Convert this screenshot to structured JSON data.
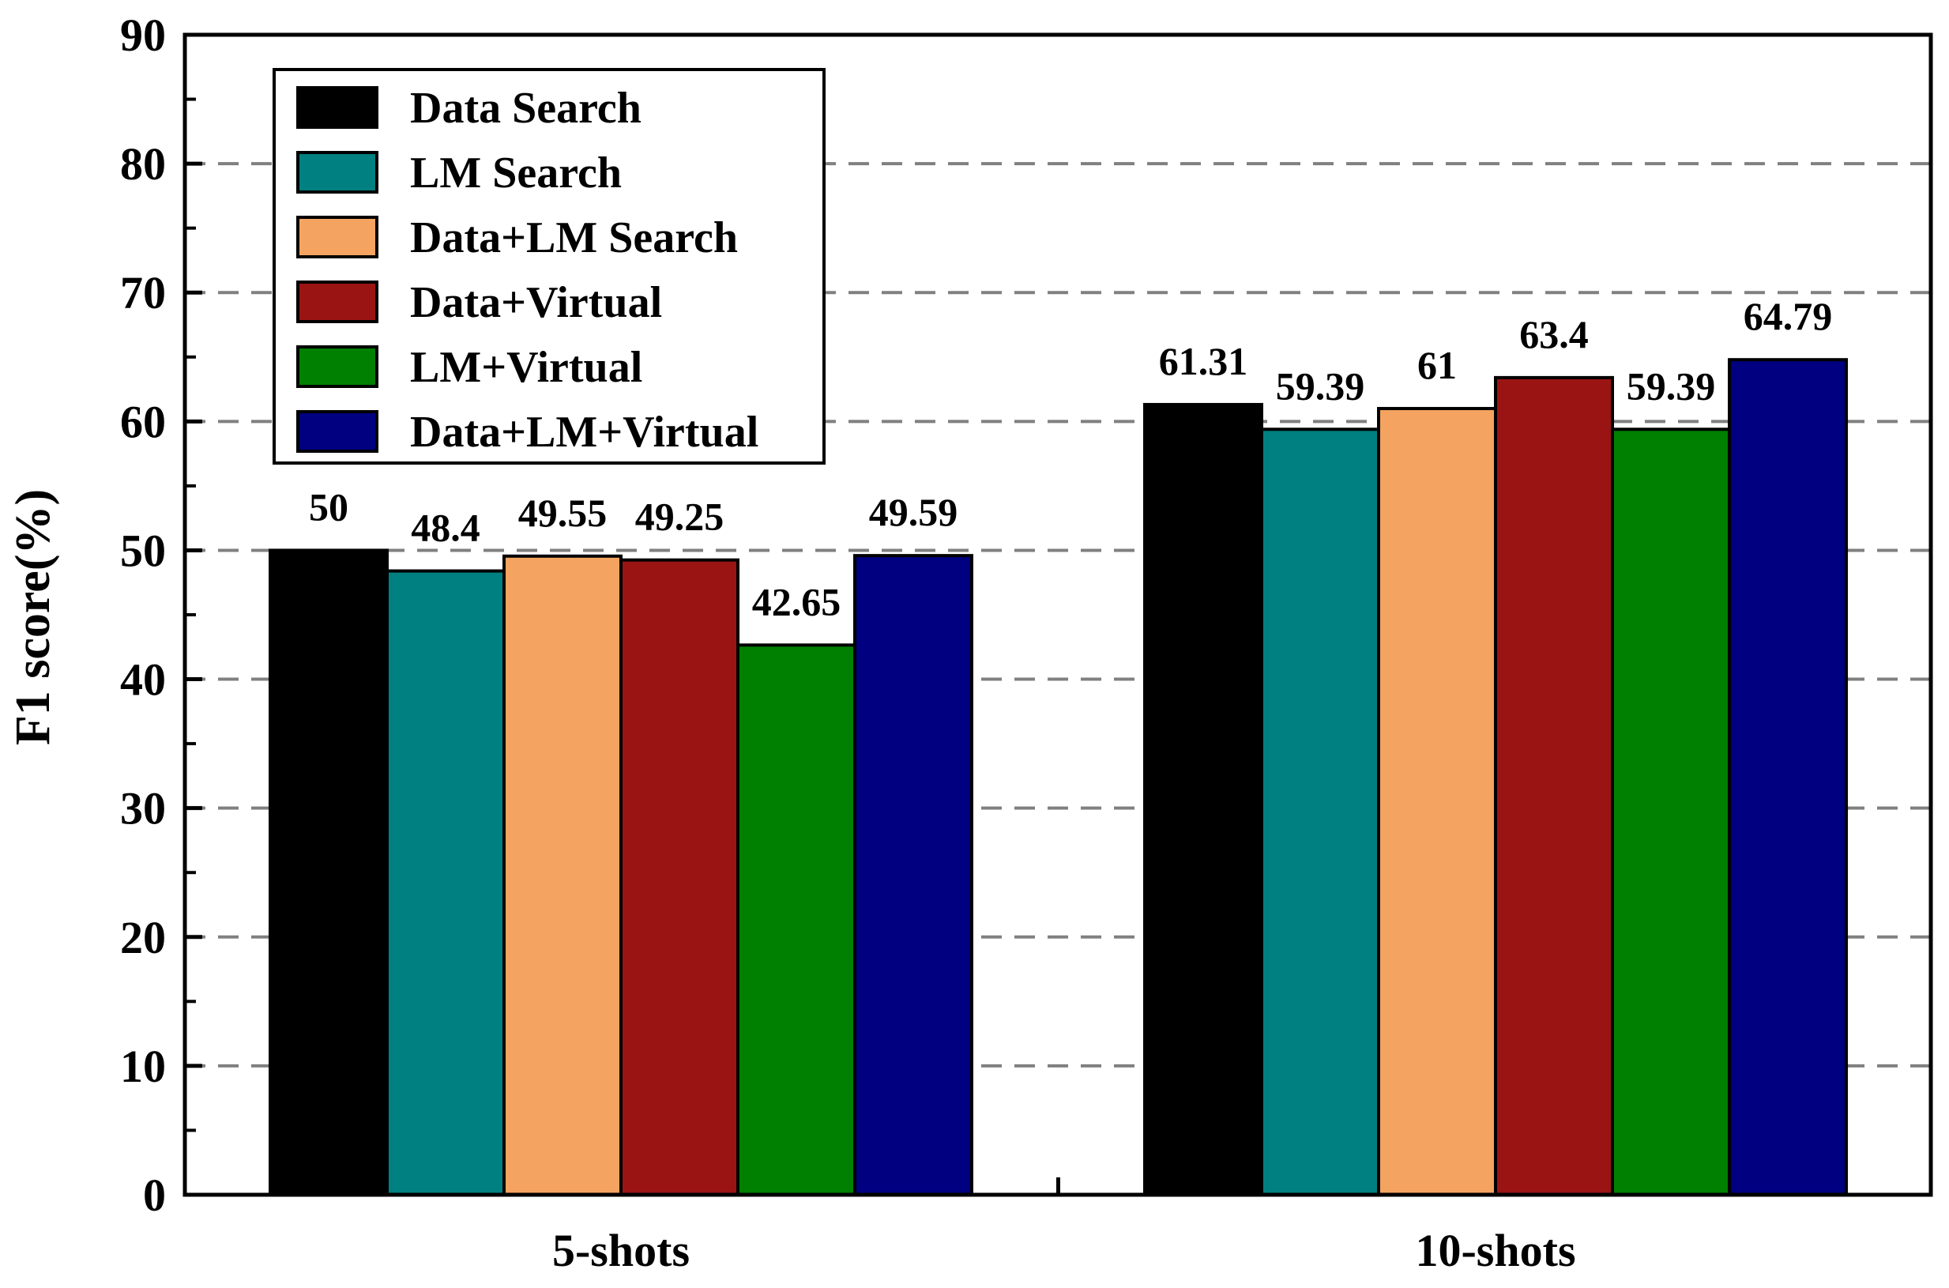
{
  "chart_data": {
    "type": "bar",
    "title": "",
    "xlabel": "",
    "ylabel": "F1 score(%)",
    "ylim": [
      0,
      90
    ],
    "yticks": [
      0,
      10,
      20,
      30,
      40,
      50,
      60,
      70,
      80,
      90
    ],
    "grid": "horizontal-dashed",
    "legend_position": "top-left",
    "categories": [
      "5-shots",
      "10-shots"
    ],
    "series": [
      {
        "name": "Data Search",
        "color": "#000000",
        "values": [
          50,
          61.31
        ],
        "labels": [
          "50",
          "61.31"
        ]
      },
      {
        "name": "LM Search",
        "color": "#008080",
        "values": [
          48.4,
          59.39
        ],
        "labels": [
          "48.4",
          "59.39"
        ]
      },
      {
        "name": "Data+LM Search",
        "color": "#F4A460",
        "values": [
          49.55,
          61
        ],
        "labels": [
          "49.55",
          "61"
        ]
      },
      {
        "name": "Data+Virtual",
        "color": "#9B1414",
        "values": [
          49.25,
          63.4
        ],
        "labels": [
          "49.25",
          "63.4"
        ]
      },
      {
        "name": "LM+Virtual",
        "color": "#008000",
        "values": [
          42.65,
          59.39
        ],
        "labels": [
          "42.65",
          "59.39"
        ]
      },
      {
        "name": "Data+LM+Virtual",
        "color": "#000080",
        "values": [
          49.59,
          64.79
        ],
        "labels": [
          "49.59",
          "64.79"
        ]
      }
    ]
  }
}
